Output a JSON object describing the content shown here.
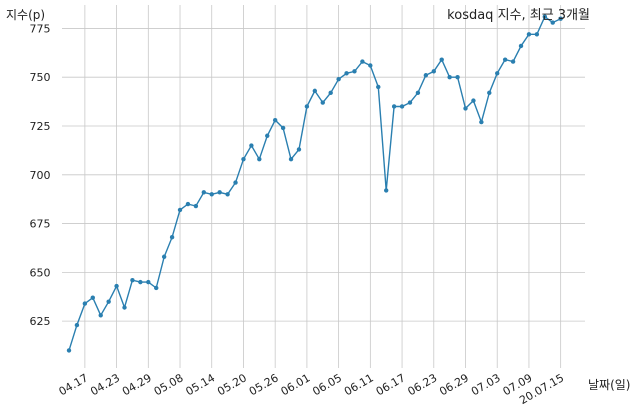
{
  "chart_data": {
    "type": "line",
    "title": "kosdaq 지수, 최근 3개월",
    "xlabel": "날짜(일)",
    "ylabel": "지수(p)",
    "ylim": [
      601,
      787
    ],
    "y_ticks": [
      625,
      650,
      675,
      700,
      725,
      750,
      775
    ],
    "grid": true,
    "line_color": "#2a7fb0",
    "x_tick_labels": [
      "04.17",
      "04.23",
      "04.29",
      "05.08",
      "05.14",
      "05.20",
      "05.26",
      "06.01",
      "06.05",
      "06.11",
      "06.17",
      "06.23",
      "06.29",
      "07.03",
      "07.09",
      "20.07.15"
    ],
    "x_tick_indices": [
      2,
      6,
      10,
      14,
      18,
      22,
      26,
      30,
      34,
      38,
      42,
      46,
      50,
      54,
      58,
      62
    ],
    "values": [
      610,
      623,
      634,
      637,
      628,
      635,
      643,
      632,
      646,
      645,
      645,
      642,
      658,
      668,
      682,
      685,
      684,
      691,
      690,
      691,
      690,
      696,
      708,
      715,
      708,
      720,
      728,
      724,
      708,
      713,
      735,
      743,
      737,
      742,
      749,
      752,
      753,
      758,
      756,
      745,
      692,
      735,
      735,
      737,
      742,
      751,
      753,
      759,
      750,
      750,
      734,
      738,
      727,
      742,
      752,
      759,
      758,
      766,
      772,
      772,
      781,
      778,
      780
    ]
  }
}
